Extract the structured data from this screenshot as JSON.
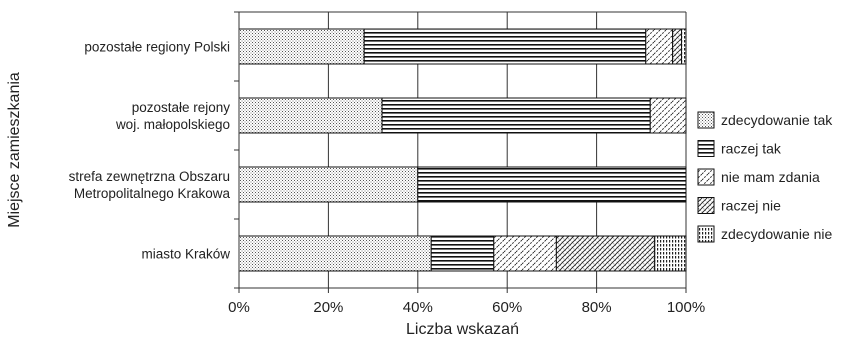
{
  "chart_data": {
    "type": "bar",
    "orientation": "horizontal",
    "stacked": true,
    "percent": true,
    "xlabel": "Liczba wskazań",
    "ylabel": "Miejsce zamieszkania",
    "xlim": [
      0,
      100
    ],
    "xticks": [
      "0%",
      "20%",
      "40%",
      "60%",
      "80%",
      "100%"
    ],
    "grid": true,
    "legend_position": "right",
    "categories": [
      [
        "pozostałe regiony Polski"
      ],
      [
        "pozostałe rejony",
        "woj. małopolskiego"
      ],
      [
        "strefa zewnętrzna Obszaru",
        "Metropolitalnego Krakowa"
      ],
      [
        "miasto Kraków"
      ]
    ],
    "series": [
      {
        "name": "zdecydowanie tak",
        "values": [
          28,
          32,
          40,
          43
        ]
      },
      {
        "name": "raczej tak",
        "values": [
          63,
          60,
          60,
          14
        ]
      },
      {
        "name": "nie mam zdania",
        "values": [
          6,
          8,
          0,
          14
        ]
      },
      {
        "name": "raczej nie",
        "values": [
          2,
          0,
          0,
          22
        ]
      },
      {
        "name": "zdecydowanie nie",
        "values": [
          1,
          0,
          0,
          7
        ]
      }
    ]
  }
}
